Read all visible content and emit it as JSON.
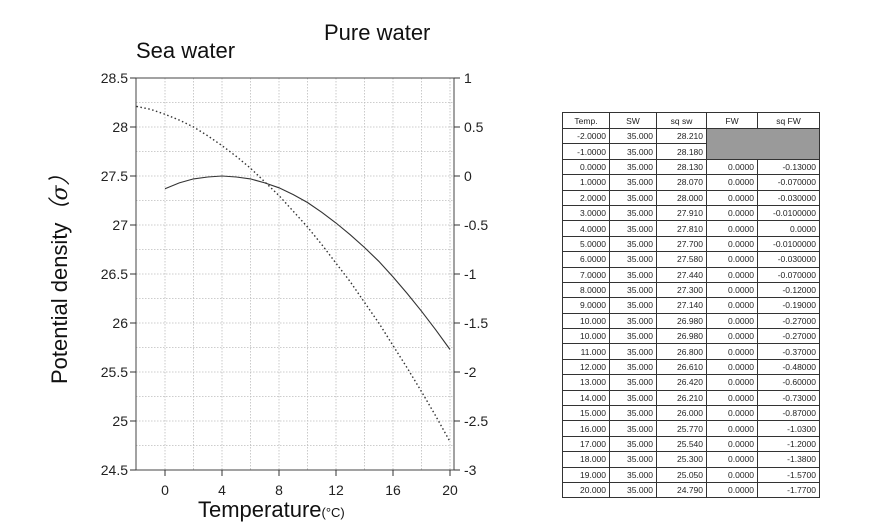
{
  "chart_data": {
    "type": "line",
    "title_left": "Sea water",
    "title_right": "Pure water",
    "xlabel": "Temperature",
    "xunit": "(°C)",
    "ylabel": "Potential density",
    "ylabel_symbol": "（σ）",
    "xlim": [
      -2,
      20
    ],
    "xticks": [
      "0",
      "4",
      "8",
      "12",
      "16",
      "20"
    ],
    "xtick_values": [
      0,
      4,
      8,
      12,
      16,
      20
    ],
    "ylim": [
      24.5,
      28.5
    ],
    "yticks_left": [
      "28.5",
      "28",
      "27.5",
      "27",
      "26.5",
      "26",
      "25.5",
      "25",
      "24.5"
    ],
    "ytick_left_values": [
      28.5,
      28,
      27.5,
      27,
      26.5,
      26,
      25.5,
      25,
      24.5
    ],
    "y2lim": [
      -3,
      1
    ],
    "yticks_right": [
      "1",
      "0.5",
      "0",
      "-0.5",
      "-1",
      "-1.5",
      "-2",
      "-2.5",
      "-3"
    ],
    "ytick_right_values": [
      1,
      0.5,
      0,
      -0.5,
      -1,
      -1.5,
      -2,
      -2.5,
      -3
    ],
    "grid": true,
    "series": [
      {
        "axis": "left",
        "style": "dotted",
        "x": [
          -2,
          -1,
          0,
          1,
          2,
          3,
          4,
          5,
          6,
          7,
          8,
          9,
          10,
          11,
          12,
          13,
          14,
          15,
          16,
          17,
          18,
          19,
          20
        ],
        "values": [
          28.21,
          28.18,
          28.13,
          28.07,
          28.0,
          27.91,
          27.81,
          27.7,
          27.58,
          27.44,
          27.3,
          27.14,
          26.98,
          26.8,
          26.61,
          26.42,
          26.21,
          26.0,
          25.77,
          25.54,
          25.3,
          25.05,
          24.79
        ]
      },
      {
        "axis": "right",
        "style": "solid",
        "x": [
          0,
          1,
          2,
          3,
          4,
          5,
          6,
          7,
          8,
          9,
          10,
          11,
          12,
          13,
          14,
          15,
          16,
          17,
          18,
          19,
          20
        ],
        "values": [
          -0.13,
          -0.07,
          -0.03,
          -0.01,
          0.0,
          -0.01,
          -0.03,
          -0.07,
          -0.12,
          -0.19,
          -0.27,
          -0.37,
          -0.48,
          -0.6,
          -0.73,
          -0.87,
          -1.03,
          -1.2,
          -1.38,
          -1.57,
          -1.77
        ]
      }
    ]
  },
  "table": {
    "headers": [
      "Temp.",
      "SW",
      "sq sw",
      "FW",
      "sq FW"
    ],
    "rows": [
      [
        "-2.0000",
        "35.000",
        "28.210",
        "",
        ""
      ],
      [
        "-1.0000",
        "35.000",
        "28.180",
        "",
        ""
      ],
      [
        "0.0000",
        "35.000",
        "28.130",
        "0.0000",
        "-0.13000"
      ],
      [
        "1.0000",
        "35.000",
        "28.070",
        "0.0000",
        "-0.070000"
      ],
      [
        "2.0000",
        "35.000",
        "28.000",
        "0.0000",
        "-0.030000"
      ],
      [
        "3.0000",
        "35.000",
        "27.910",
        "0.0000",
        "-0.0100000"
      ],
      [
        "4.0000",
        "35.000",
        "27.810",
        "0.0000",
        "0.0000"
      ],
      [
        "5.0000",
        "35.000",
        "27.700",
        "0.0000",
        "-0.0100000"
      ],
      [
        "6.0000",
        "35.000",
        "27.580",
        "0.0000",
        "-0.030000"
      ],
      [
        "7.0000",
        "35.000",
        "27.440",
        "0.0000",
        "-0.070000"
      ],
      [
        "8.0000",
        "35.000",
        "27.300",
        "0.0000",
        "-0.12000"
      ],
      [
        "9.0000",
        "35.000",
        "27.140",
        "0.0000",
        "-0.19000"
      ],
      [
        "10.000",
        "35.000",
        "26.980",
        "0.0000",
        "-0.27000"
      ],
      [
        "10.000",
        "35.000",
        "26.980",
        "0.0000",
        "-0.27000"
      ],
      [
        "11.000",
        "35.000",
        "26.800",
        "0.0000",
        "-0.37000"
      ],
      [
        "12.000",
        "35.000",
        "26.610",
        "0.0000",
        "-0.48000"
      ],
      [
        "13.000",
        "35.000",
        "26.420",
        "0.0000",
        "-0.60000"
      ],
      [
        "14.000",
        "35.000",
        "26.210",
        "0.0000",
        "-0.73000"
      ],
      [
        "15.000",
        "35.000",
        "26.000",
        "0.0000",
        "-0.87000"
      ],
      [
        "16.000",
        "35.000",
        "25.770",
        "0.0000",
        "-1.0300"
      ],
      [
        "17.000",
        "35.000",
        "25.540",
        "0.0000",
        "-1.2000"
      ],
      [
        "18.000",
        "35.000",
        "25.300",
        "0.0000",
        "-1.3800"
      ],
      [
        "19.000",
        "35.000",
        "25.050",
        "0.0000",
        "-1.5700"
      ],
      [
        "20.000",
        "35.000",
        "24.790",
        "0.0000",
        "-1.7700"
      ]
    ],
    "shaded_color": "#9a9a9a"
  }
}
